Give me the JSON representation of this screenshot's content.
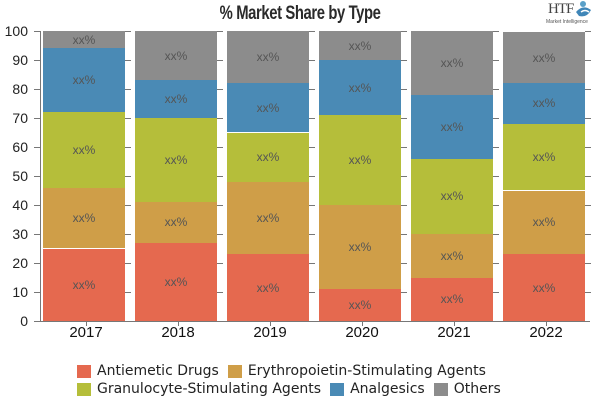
{
  "chart_data": {
    "type": "bar",
    "stacked": true,
    "title": "% Market Share by Type",
    "xlabel": "",
    "ylabel": "",
    "ylim": [
      0,
      100
    ],
    "yticks": [
      0,
      10,
      20,
      30,
      40,
      50,
      60,
      70,
      80,
      90,
      100
    ],
    "categories": [
      "2017",
      "2018",
      "2019",
      "2020",
      "2021",
      "2022"
    ],
    "series": [
      {
        "name": "Antiemetic Drugs",
        "color": "#E5694F",
        "values": [
          25,
          27,
          23,
          11,
          15,
          23
        ],
        "labels": [
          "xx%",
          "xx%",
          "xx%",
          "xx%",
          "xx%",
          "xx%"
        ]
      },
      {
        "name": "Erythropoietin-Stimulating Agents",
        "color": "#CF9E48",
        "values": [
          21,
          14,
          25,
          29,
          15,
          22
        ],
        "labels": [
          "xx%",
          "xx%",
          "xx%",
          "xx%",
          "xx%",
          "xx%"
        ]
      },
      {
        "name": "Granulocyte-Stimulating Agents",
        "color": "#B5BE3A",
        "values": [
          26,
          29,
          17,
          31,
          26,
          23
        ],
        "labels": [
          "xx%",
          "xx%",
          "xx%",
          "xx%",
          "xx%",
          "xx%"
        ]
      },
      {
        "name": "Analgesics",
        "color": "#4A8AB5",
        "values": [
          22,
          13,
          17,
          19,
          22,
          14
        ],
        "labels": [
          "xx%",
          "xx%",
          "xx%",
          "xx%",
          "xx%",
          "xx%"
        ]
      },
      {
        "name": "Others",
        "color": "#8C8C8C",
        "values": [
          6,
          17,
          18,
          10,
          22,
          17.5
        ],
        "labels": [
          "xx%",
          "xx%",
          "xx%",
          "xx%",
          "xx%",
          "xx%"
        ]
      }
    ],
    "legend_position": "bottom",
    "grid": false
  },
  "logo": {
    "text": "HTF",
    "subtext": "Market Intelligence"
  }
}
